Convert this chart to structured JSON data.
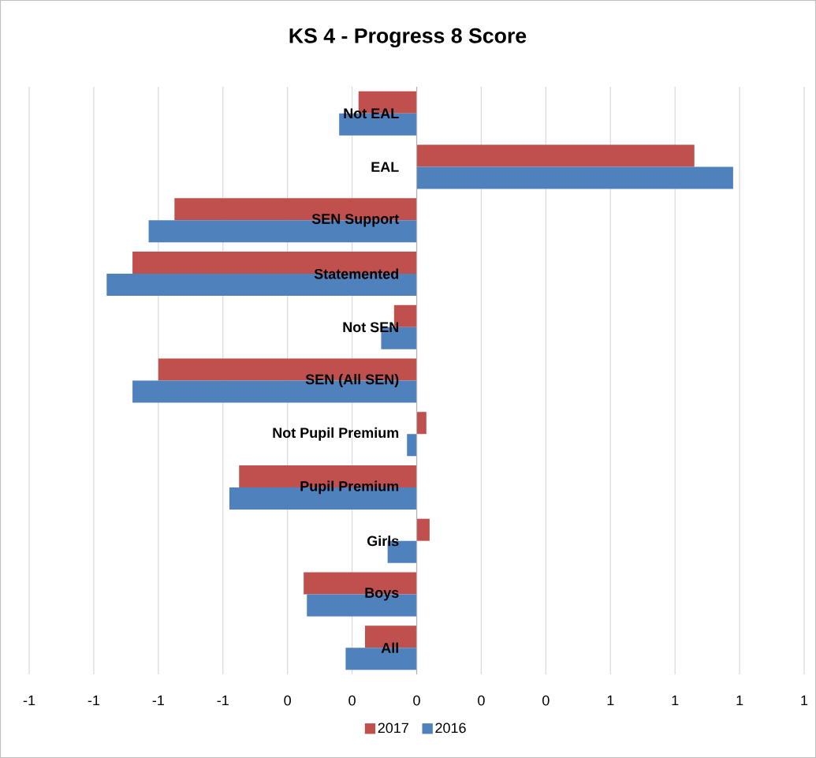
{
  "chart_data": {
    "type": "bar",
    "orientation": "horizontal",
    "title": "KS 4 - Progress 8 Score",
    "categories": [
      "Not EAL",
      "EAL",
      "SEN Support",
      "Statemented",
      "Not SEN",
      "SEN (All SEN)",
      "Not Pupil Premium",
      "Pupil Premium",
      "Girls",
      "Boys",
      "All"
    ],
    "series": [
      {
        "name": "2017",
        "color": "#c0504d",
        "values": [
          -0.18,
          0.86,
          -0.75,
          -0.88,
          -0.07,
          -0.8,
          0.03,
          -0.55,
          0.04,
          -0.35,
          -0.16
        ]
      },
      {
        "name": "2016",
        "color": "#4f81bd",
        "values": [
          -0.24,
          0.98,
          -0.83,
          -0.96,
          -0.11,
          -0.88,
          -0.03,
          -0.58,
          -0.09,
          -0.34,
          -0.22
        ]
      }
    ],
    "xlim": [
      -1.2,
      1.2
    ],
    "xticks": [
      {
        "value": -1.2,
        "label": "-1"
      },
      {
        "value": -1.0,
        "label": "-1"
      },
      {
        "value": -0.8,
        "label": "-1"
      },
      {
        "value": -0.6,
        "label": "-1"
      },
      {
        "value": -0.4,
        "label": "0"
      },
      {
        "value": -0.2,
        "label": "0"
      },
      {
        "value": 0,
        "label": "0"
      },
      {
        "value": 0.2,
        "label": "0"
      },
      {
        "value": 0.4,
        "label": "0"
      },
      {
        "value": 0.6,
        "label": "1"
      },
      {
        "value": 0.8,
        "label": "1"
      },
      {
        "value": 1.0,
        "label": "1"
      },
      {
        "value": 1.2,
        "label": "1"
      }
    ],
    "grid": "x",
    "legend": "bottom"
  }
}
